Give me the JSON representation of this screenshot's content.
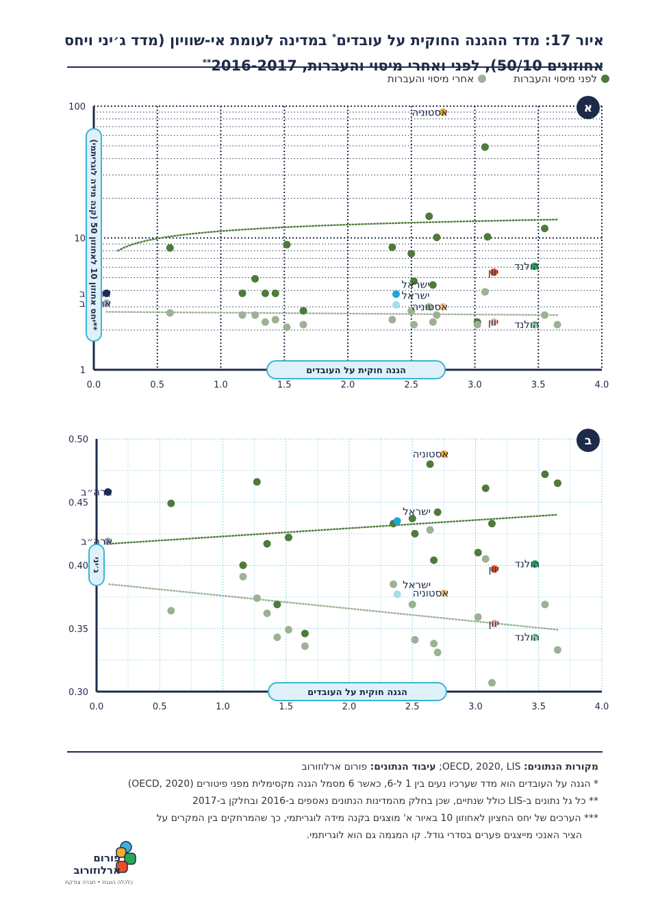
{
  "header": {
    "title_line1": "איור 17: מדד ההגנה החוקית על עובדים",
    "title_mark1": "*",
    "title_line1b": " במדינה לעומת אי-שוויון (מדד ג׳יני ויחס",
    "title_line2": "אחוזונים 50/10), לפני ואחרי מיסוי והעברות, 2016-2017",
    "title_mark2": "**"
  },
  "legend": {
    "before": "לפני מיסוי והעברות",
    "after": "אחרי מיסוי והעברות"
  },
  "colors": {
    "before": "#4e7a3a",
    "after": "#9db195",
    "navy": "#1e2a4a",
    "panel_border": "#1e2a4a",
    "accent_box": "#3ab3d6",
    "box_fill": "#dff1f8",
    "usa_before": "#1f2d5c",
    "usa_after": "#a3a8b5",
    "estonia_before": "#f4a92f",
    "estonia_after": "#f8c27f",
    "israel_before": "#19a6d8",
    "israel_after": "#a6dcef",
    "greece_before": "#e94d26",
    "greece_after": "#f4b1a0",
    "netherlands_before": "#29a85a",
    "netherlands_after": "#8fd3a4"
  },
  "chart_data": [
    {
      "id": "A",
      "badge": "א",
      "type": "scatter",
      "x_scale": "linear",
      "y_scale": "log",
      "xlabel": "הגנה חוקית על העובדים",
      "ylabel": "יחס אחוזון 10 לאחוזון 50 (קנה מידה לוגריתמי)**",
      "xlim": [
        0,
        4
      ],
      "ylim": [
        1,
        100
      ],
      "x_ticks": [
        "0.0",
        "0.5",
        "1.0",
        "1.5",
        "2.0",
        "2.5",
        "3.0",
        "3.5",
        "4.0"
      ],
      "y_ticks": [
        {
          "v": 1,
          "label": "1"
        },
        {
          "v": 10,
          "label": "10"
        },
        {
          "v": 100,
          "label": "100"
        }
      ],
      "series": [
        {
          "name": "לפני מיסוי והעברות",
          "points": [
            [
              0.6,
              8.4
            ],
            [
              1.17,
              3.8
            ],
            [
              1.27,
              4.9
            ],
            [
              1.35,
              3.8
            ],
            [
              1.43,
              3.8
            ],
            [
              1.52,
              8.9
            ],
            [
              1.65,
              2.8
            ],
            [
              2.35,
              8.5
            ],
            [
              2.5,
              7.6
            ],
            [
              2.52,
              4.7
            ],
            [
              2.64,
              14.6
            ],
            [
              2.67,
              4.4
            ],
            [
              2.7,
              10.1
            ],
            [
              3.02,
              2.3
            ],
            [
              3.08,
              48.9
            ],
            [
              3.1,
              10.2
            ],
            [
              3.55,
              11.8
            ]
          ]
        },
        {
          "name": "אחרי מיסוי והעברות",
          "points": [
            [
              0.6,
              2.7
            ],
            [
              1.17,
              2.6
            ],
            [
              1.27,
              2.6
            ],
            [
              1.35,
              2.3
            ],
            [
              1.43,
              2.4
            ],
            [
              1.52,
              2.1
            ],
            [
              1.65,
              2.2
            ],
            [
              2.35,
              2.4
            ],
            [
              2.5,
              2.8
            ],
            [
              2.52,
              2.2
            ],
            [
              2.64,
              3.0
            ],
            [
              2.67,
              2.3
            ],
            [
              2.7,
              2.6
            ],
            [
              3.02,
              2.2
            ],
            [
              3.08,
              3.9
            ],
            [
              3.55,
              2.6
            ],
            [
              3.65,
              2.2
            ]
          ]
        }
      ],
      "trendlines": [
        {
          "series": "לפני מיסוי והעברות",
          "kind": "log",
          "a": 11.26,
          "b": 1.957
        },
        {
          "series": "אחרי מיסוי והעברות",
          "kind": "linear",
          "from": [
            0.1,
            2.75
          ],
          "to": [
            3.65,
            2.6
          ]
        }
      ],
      "highlights": [
        {
          "country": "ארה״ב",
          "x": 0.1,
          "y": 3.8,
          "group": "before",
          "color_key": "usa_before"
        },
        {
          "country": "ארה״ב",
          "x": 0.1,
          "y": 3.2,
          "group": "after",
          "color_key": "usa_after"
        },
        {
          "country": "אסטוניה",
          "x": 2.75,
          "y": 90,
          "group": "before",
          "color_key": "estonia_before"
        },
        {
          "country": "אסטוניה",
          "x": 2.75,
          "y": 3.0,
          "group": "after",
          "color_key": "estonia_after"
        },
        {
          "country": "ישראל",
          "x": 2.38,
          "y": 3.75,
          "group": "before",
          "color_key": "israel_before"
        },
        {
          "country": "ישראל",
          "x": 2.38,
          "y": 3.1,
          "group": "after",
          "color_key": "israel_after"
        },
        {
          "country": "יוון",
          "x": 3.15,
          "y": 5.5,
          "group": "before",
          "color_key": "greece_before"
        },
        {
          "country": "יוון",
          "x": 3.15,
          "y": 2.3,
          "group": "after",
          "color_key": "greece_after"
        },
        {
          "country": "הולנד",
          "x": 3.47,
          "y": 6.1,
          "group": "before",
          "color_key": "netherlands_before"
        },
        {
          "country": "הולנד",
          "x": 3.47,
          "y": 2.2,
          "group": "after",
          "color_key": "netherlands_after"
        }
      ]
    },
    {
      "id": "B",
      "badge": "ב",
      "type": "scatter",
      "x_scale": "linear",
      "y_scale": "linear",
      "xlabel": "הגנה חוקית על העובדים",
      "ylabel": "ג׳יני",
      "xlim": [
        0,
        4
      ],
      "ylim": [
        0.3,
        0.5
      ],
      "x_ticks": [
        "0.0",
        "0.5",
        "1.0",
        "1.5",
        "2.0",
        "2.5",
        "3.0",
        "3.5",
        "4.0"
      ],
      "y_ticks": [
        {
          "v": 0.3,
          "label": "0.30"
        },
        {
          "v": 0.35,
          "label": "0.35"
        },
        {
          "v": 0.4,
          "label": "0.40"
        },
        {
          "v": 0.45,
          "label": "0.45"
        },
        {
          "v": 0.5,
          "label": "0.50"
        }
      ],
      "series": [
        {
          "name": "לפני מיסוי והעברות",
          "points": [
            [
              0.59,
              0.449
            ],
            [
              1.16,
              0.4
            ],
            [
              1.27,
              0.466
            ],
            [
              1.35,
              0.417
            ],
            [
              1.43,
              0.369
            ],
            [
              1.52,
              0.422
            ],
            [
              1.65,
              0.346
            ],
            [
              2.35,
              0.433
            ],
            [
              2.5,
              0.437
            ],
            [
              2.52,
              0.425
            ],
            [
              2.64,
              0.48
            ],
            [
              2.67,
              0.404
            ],
            [
              2.7,
              0.442
            ],
            [
              3.02,
              0.41
            ],
            [
              3.08,
              0.461
            ],
            [
              3.13,
              0.433
            ],
            [
              3.55,
              0.472
            ],
            [
              3.65,
              0.465
            ]
          ]
        },
        {
          "name": "אחרי מיסוי והעברות",
          "points": [
            [
              0.59,
              0.364
            ],
            [
              1.16,
              0.391
            ],
            [
              1.27,
              0.374
            ],
            [
              1.35,
              0.362
            ],
            [
              1.43,
              0.343
            ],
            [
              1.52,
              0.349
            ],
            [
              1.65,
              0.336
            ],
            [
              2.35,
              0.385
            ],
            [
              2.5,
              0.369
            ],
            [
              2.52,
              0.341
            ],
            [
              2.64,
              0.428
            ],
            [
              2.67,
              0.338
            ],
            [
              2.7,
              0.331
            ],
            [
              3.02,
              0.359
            ],
            [
              3.08,
              0.405
            ],
            [
              3.13,
              0.307
            ],
            [
              3.55,
              0.369
            ],
            [
              3.65,
              0.333
            ]
          ]
        }
      ],
      "trendlines": [
        {
          "series": "לפני מיסוי והעברות",
          "kind": "linear",
          "from": [
            0.1,
            0.417
          ],
          "to": [
            3.65,
            0.44
          ]
        },
        {
          "series": "אחרי מיסוי והעברות",
          "kind": "linear",
          "from": [
            0.1,
            0.385
          ],
          "to": [
            3.65,
            0.349
          ]
        }
      ],
      "highlights": [
        {
          "country": "ארה״ב",
          "x": 0.09,
          "y": 0.458,
          "group": "before",
          "color_key": "usa_before"
        },
        {
          "country": "ארה״ב",
          "x": 0.09,
          "y": 0.419,
          "group": "after",
          "color_key": "usa_after"
        },
        {
          "country": "אסטוניה",
          "x": 2.75,
          "y": 0.488,
          "group": "before",
          "color_key": "estonia_before"
        },
        {
          "country": "אסטוניה",
          "x": 2.75,
          "y": 0.378,
          "group": "after",
          "color_key": "estonia_after"
        },
        {
          "country": "ישראל",
          "x": 2.38,
          "y": 0.435,
          "group": "before",
          "color_key": "israel_before"
        },
        {
          "country": "ישראל",
          "x": 2.38,
          "y": 0.377,
          "group": "after",
          "color_key": "israel_after"
        },
        {
          "country": "יוון",
          "x": 3.15,
          "y": 0.397,
          "group": "before",
          "color_key": "greece_before"
        },
        {
          "country": "יוון",
          "x": 3.15,
          "y": 0.354,
          "group": "after",
          "color_key": "greece_after"
        },
        {
          "country": "הולנד",
          "x": 3.47,
          "y": 0.401,
          "group": "before",
          "color_key": "netherlands_before"
        },
        {
          "country": "הולנד",
          "x": 3.47,
          "y": 0.343,
          "group": "after",
          "color_key": "netherlands_after"
        }
      ]
    }
  ],
  "notes": {
    "sources_label": "מקורות הנתונים:",
    "sources_value": " OECD, 2020, LIS; ",
    "processing_label": "עיבוד הנתונים:",
    "processing_value": " פורום ארלוזורוב",
    "note1": "* הגנה על העובדים הוא מדד שערכיו נעים בין 1 ל-6, כאשר 6 מסמל הגנה מקסימלית מפני פיטורים (OECD, 2020)",
    "note2": "** כל גל נתונים ב-LIS כולל שנתיים, שכן בחלק מהמדינות הנתונים נאספים ב-2016 ובחלקן ב-2017",
    "note3": "*** הערכים של יחס החציון לאחוזון 10 באיור א' מוצגים בקנה מידה לוגריתמי, כך שהמרחקים בין המקרים על",
    "note3b": "הציר האנכי מייצגים פערים בסדרי גודל. קו המגמה גם הוא לוגריתמי."
  },
  "logo": {
    "line1": "פורום",
    "line2": "ארלוזורוב",
    "tagline": "כלכלה הוגנת • חברה צודקת"
  }
}
